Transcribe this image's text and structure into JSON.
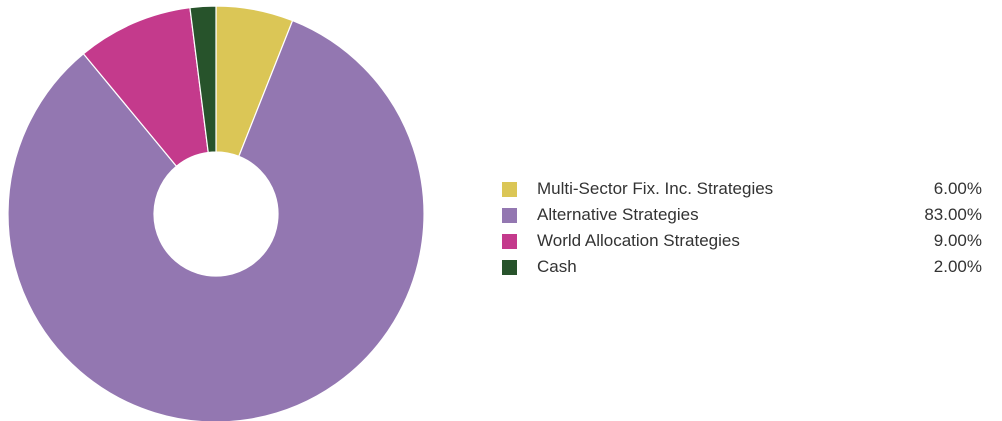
{
  "chart_data": {
    "type": "pie",
    "style": "donut",
    "legend_position": "right",
    "slices": [
      {
        "label": "Multi-Sector Fix. Inc. Strategies",
        "value": 6.0,
        "display": "6.00%",
        "color": "#dbc656"
      },
      {
        "label": "Alternative Strategies",
        "value": 83.0,
        "display": "83.00%",
        "color": "#9377b1"
      },
      {
        "label": "World Allocation Strategies",
        "value": 9.0,
        "display": "9.00%",
        "color": "#c43a8c"
      },
      {
        "label": "Cash",
        "value": 2.0,
        "display": "2.00%",
        "color": "#27532b"
      }
    ]
  }
}
